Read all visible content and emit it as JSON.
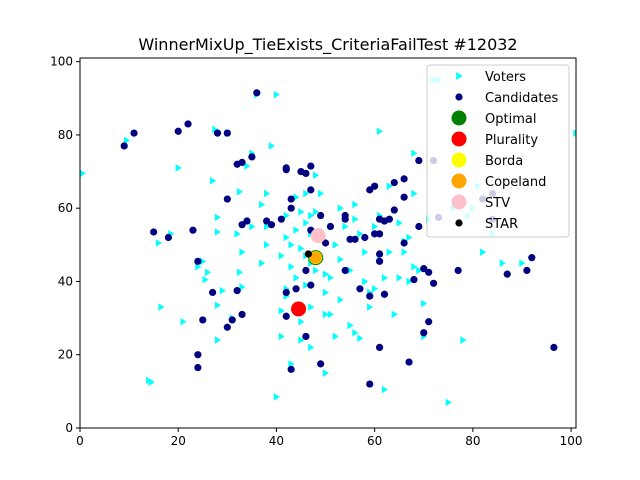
{
  "chart_data": {
    "type": "scatter",
    "title": "WinnerMixUp_TieExists_CriteriaFailTest #12032",
    "xlabel": "",
    "ylabel": "",
    "xlim": [
      0,
      101
    ],
    "ylim": [
      0,
      101
    ],
    "xticks": [
      0,
      20,
      40,
      60,
      80,
      100
    ],
    "yticks": [
      0,
      20,
      40,
      60,
      80,
      100
    ],
    "grid": false,
    "legend_position": "top-right",
    "series": [
      {
        "name": "Voters",
        "marker": "triangle-right",
        "color": "#00ffff",
        "points": [
          [
            0.5,
            69.5
          ],
          [
            9.5,
            78.5
          ],
          [
            14,
            13
          ],
          [
            14.5,
            12.5
          ],
          [
            16,
            50.5
          ],
          [
            16.5,
            33
          ],
          [
            18.5,
            53
          ],
          [
            20,
            71
          ],
          [
            21,
            29
          ],
          [
            24,
            44
          ],
          [
            25,
            45.5
          ],
          [
            25.5,
            40.5
          ],
          [
            26,
            42.5
          ],
          [
            27,
            67.5
          ],
          [
            27.5,
            81.5
          ],
          [
            28,
            57.5
          ],
          [
            28,
            53.5
          ],
          [
            28,
            33.5
          ],
          [
            28,
            24
          ],
          [
            29,
            37.5
          ],
          [
            30,
            80.5
          ],
          [
            31,
            30
          ],
          [
            32,
            53
          ],
          [
            32.5,
            64.5
          ],
          [
            32.5,
            42.5
          ],
          [
            33,
            48
          ],
          [
            33,
            38.5
          ],
          [
            34,
            71.5
          ],
          [
            35,
            55
          ],
          [
            35,
            75
          ],
          [
            36,
            91
          ],
          [
            37,
            45
          ],
          [
            37,
            61
          ],
          [
            38,
            55
          ],
          [
            38,
            64
          ],
          [
            38,
            50
          ],
          [
            39,
            77
          ],
          [
            40,
            8.5
          ],
          [
            40,
            91
          ],
          [
            41,
            47
          ],
          [
            41,
            32
          ],
          [
            41,
            25
          ],
          [
            42,
            58
          ],
          [
            42,
            52
          ],
          [
            42,
            38
          ],
          [
            42,
            36
          ],
          [
            43,
            50
          ],
          [
            43,
            44
          ],
          [
            43,
            17.5
          ],
          [
            44,
            41
          ],
          [
            44,
            54
          ],
          [
            44,
            63
          ],
          [
            45,
            59
          ],
          [
            45,
            49
          ],
          [
            45,
            29
          ],
          [
            45,
            24
          ],
          [
            46,
            56
          ],
          [
            46,
            64
          ],
          [
            46,
            47
          ],
          [
            46,
            39
          ],
          [
            47,
            58
          ],
          [
            47,
            53
          ],
          [
            47,
            45
          ],
          [
            47,
            33
          ],
          [
            47,
            22
          ],
          [
            48,
            69
          ],
          [
            48,
            59
          ],
          [
            48,
            43
          ],
          [
            49,
            46
          ],
          [
            49,
            53
          ],
          [
            49,
            64
          ],
          [
            50,
            15
          ],
          [
            50,
            42
          ],
          [
            50,
            37
          ],
          [
            50,
            31
          ],
          [
            51,
            31
          ],
          [
            51,
            41
          ],
          [
            51,
            55
          ],
          [
            52,
            25
          ],
          [
            52,
            50
          ],
          [
            53,
            35
          ],
          [
            53,
            46
          ],
          [
            53,
            60
          ],
          [
            54,
            55
          ],
          [
            55,
            28
          ],
          [
            55,
            43
          ],
          [
            56,
            57
          ],
          [
            56,
            61
          ],
          [
            56,
            26
          ],
          [
            57,
            24.5
          ],
          [
            57,
            53
          ],
          [
            58,
            40
          ],
          [
            58,
            48
          ],
          [
            59,
            37
          ],
          [
            59,
            33
          ],
          [
            60,
            38
          ],
          [
            60,
            55
          ],
          [
            61,
            81
          ],
          [
            61,
            47
          ],
          [
            61,
            58
          ],
          [
            62,
            41
          ],
          [
            62,
            10.5
          ],
          [
            63,
            66
          ],
          [
            63,
            48
          ],
          [
            64,
            31
          ],
          [
            65,
            41
          ],
          [
            65,
            56
          ],
          [
            66,
            51
          ],
          [
            66,
            48
          ],
          [
            67,
            52
          ],
          [
            67,
            40
          ],
          [
            68,
            44
          ],
          [
            68,
            64
          ],
          [
            68,
            75
          ],
          [
            69,
            43
          ],
          [
            70,
            34
          ],
          [
            70,
            25
          ],
          [
            71,
            57
          ],
          [
            72,
            95
          ],
          [
            73,
            95
          ],
          [
            75,
            7
          ],
          [
            76,
            60
          ],
          [
            78,
            24
          ],
          [
            79,
            58
          ],
          [
            80,
            60
          ],
          [
            81,
            66
          ],
          [
            82,
            48
          ],
          [
            84,
            53
          ],
          [
            86,
            45
          ],
          [
            90,
            45
          ],
          [
            101,
            80.5
          ]
        ]
      },
      {
        "name": "Candidates",
        "marker": "circle",
        "color": "#000080",
        "points": [
          [
            9,
            77
          ],
          [
            11,
            80.5
          ],
          [
            15,
            53.5
          ],
          [
            18,
            52
          ],
          [
            20,
            81
          ],
          [
            22,
            83
          ],
          [
            23,
            54
          ],
          [
            24,
            45.5
          ],
          [
            24,
            20
          ],
          [
            24,
            16.5
          ],
          [
            25,
            29.5
          ],
          [
            27,
            37
          ],
          [
            28,
            80.5
          ],
          [
            30,
            62.5
          ],
          [
            30,
            27.5
          ],
          [
            30,
            80.5
          ],
          [
            31,
            29.5
          ],
          [
            32,
            72
          ],
          [
            32,
            37.5
          ],
          [
            33,
            72.5
          ],
          [
            33,
            31
          ],
          [
            33,
            55.5
          ],
          [
            34,
            56.5
          ],
          [
            35,
            74
          ],
          [
            36,
            91.5
          ],
          [
            38,
            56.5
          ],
          [
            39,
            55.5
          ],
          [
            41,
            57
          ],
          [
            42,
            71
          ],
          [
            42,
            70.5
          ],
          [
            42,
            30.5
          ],
          [
            42,
            37
          ],
          [
            43,
            62.5
          ],
          [
            43,
            60
          ],
          [
            43,
            16
          ],
          [
            44,
            38
          ],
          [
            45,
            70
          ],
          [
            46,
            69.5
          ],
          [
            46,
            43
          ],
          [
            46,
            25
          ],
          [
            47,
            39
          ],
          [
            47,
            54
          ],
          [
            47,
            65
          ],
          [
            47,
            71.5
          ],
          [
            48,
            47.5
          ],
          [
            48,
            52
          ],
          [
            49,
            17.5
          ],
          [
            49,
            58
          ],
          [
            50,
            50.5
          ],
          [
            51,
            55
          ],
          [
            54,
            43
          ],
          [
            54,
            58
          ],
          [
            54,
            57
          ],
          [
            55,
            51.5
          ],
          [
            56,
            51.5
          ],
          [
            57,
            38
          ],
          [
            58,
            52
          ],
          [
            59,
            65
          ],
          [
            59,
            12
          ],
          [
            59,
            36
          ],
          [
            60,
            66
          ],
          [
            60,
            53
          ],
          [
            61,
            53
          ],
          [
            61,
            57
          ],
          [
            61,
            47.5
          ],
          [
            61,
            45.5
          ],
          [
            61,
            22
          ],
          [
            62,
            56.5
          ],
          [
            62,
            36.5
          ],
          [
            63,
            57
          ],
          [
            64,
            59.5
          ],
          [
            64,
            67
          ],
          [
            66,
            68
          ],
          [
            66,
            63
          ],
          [
            66,
            50.5
          ],
          [
            67,
            18
          ],
          [
            68,
            40.5
          ],
          [
            69,
            73
          ],
          [
            69,
            55
          ],
          [
            70,
            43.5
          ],
          [
            70,
            26
          ],
          [
            71,
            42.5
          ],
          [
            71,
            29
          ],
          [
            72,
            39.5
          ],
          [
            72,
            73
          ],
          [
            73,
            57.5
          ],
          [
            77,
            43
          ],
          [
            82,
            62.5
          ],
          [
            84,
            57
          ],
          [
            84,
            64
          ],
          [
            87,
            42
          ],
          [
            91,
            43
          ],
          [
            92,
            46.5
          ],
          [
            96.5,
            22
          ]
        ]
      }
    ],
    "winners": [
      {
        "name": "Optimal",
        "color": "#008000",
        "x": 48,
        "y": 46.5
      },
      {
        "name": "Plurality",
        "color": "#ff0000",
        "x": 44.5,
        "y": 32.5
      },
      {
        "name": "Borda",
        "color": "#ffff00",
        "x": 48,
        "y": 46.5
      },
      {
        "name": "Copeland",
        "color": "#ffa500",
        "x": 48,
        "y": 46.5
      },
      {
        "name": "STV",
        "color": "#ffc0cb",
        "x": 48.5,
        "y": 52.5
      },
      {
        "name": "STAR",
        "color": "#000000",
        "x": 46.5,
        "y": 47.5
      }
    ],
    "legend": [
      {
        "label": "Voters",
        "marker": "triangle-right",
        "color": "#00ffff"
      },
      {
        "label": "Candidates",
        "marker": "circle",
        "color": "#000080"
      },
      {
        "label": "Optimal",
        "marker": "circle-large",
        "color": "#008000"
      },
      {
        "label": "Plurality",
        "marker": "circle-large",
        "color": "#ff0000"
      },
      {
        "label": "Borda",
        "marker": "circle-large",
        "color": "#ffff00"
      },
      {
        "label": "Copeland",
        "marker": "circle-large",
        "color": "#ffa500"
      },
      {
        "label": "STV",
        "marker": "circle-large",
        "color": "#ffc0cb"
      },
      {
        "label": "STAR",
        "marker": "circle-small",
        "color": "#000000"
      }
    ]
  }
}
